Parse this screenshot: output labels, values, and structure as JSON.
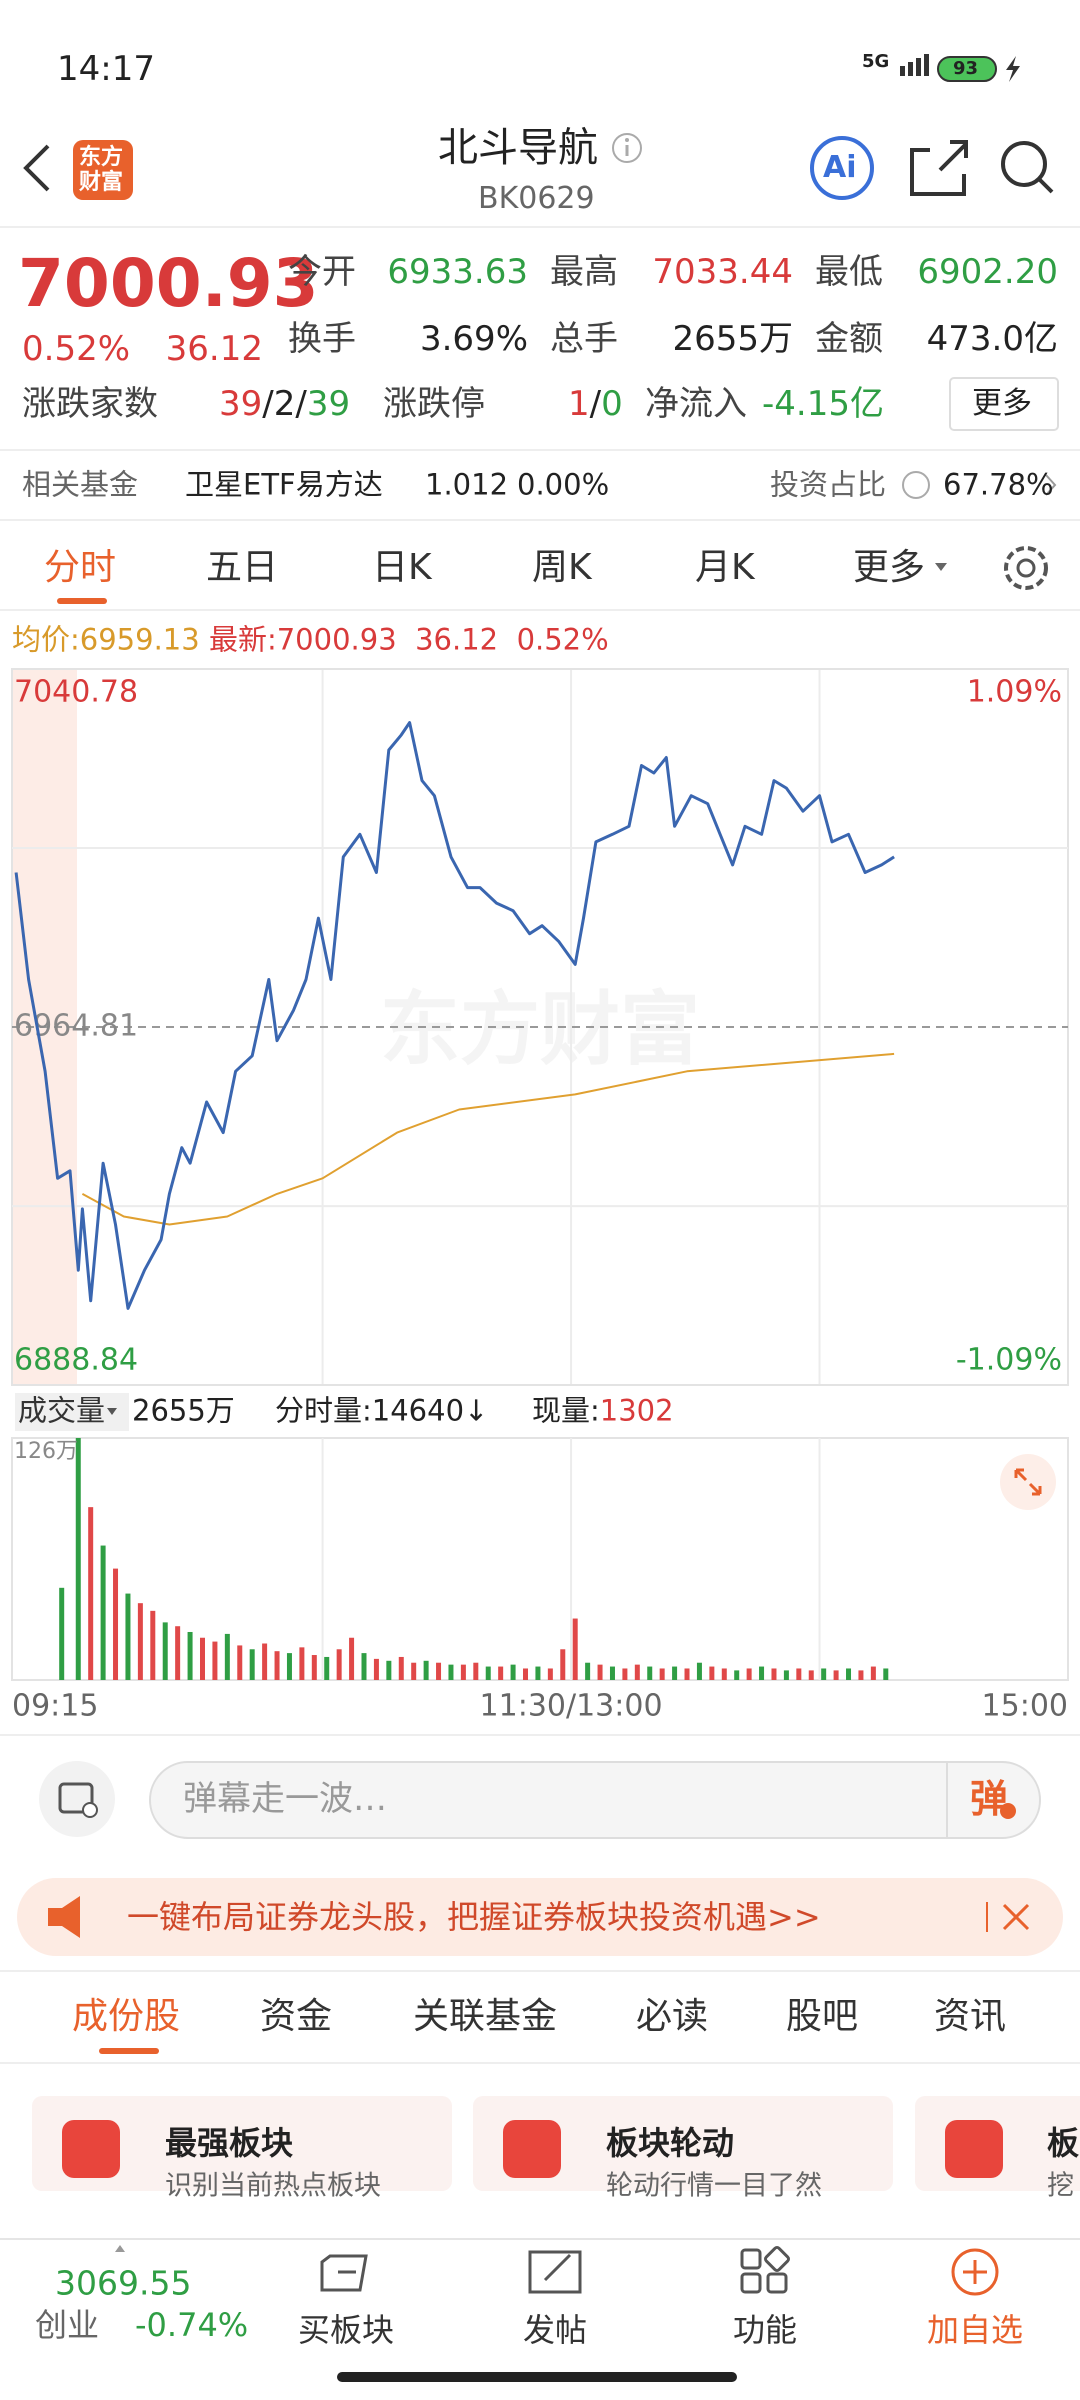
{
  "status_bar": {
    "time": "14:17",
    "network": "5G",
    "battery": "93"
  },
  "header": {
    "logo": [
      "东方",
      "财富"
    ],
    "title": "北斗导航",
    "code": "BK0629",
    "ai_button": "Ai"
  },
  "quote": {
    "price": "7000.93",
    "change_percent": "0.52%",
    "change": "36.12",
    "open": {
      "label": "今开",
      "value": "6933.63"
    },
    "high": {
      "label": "最高",
      "value": "7033.44"
    },
    "low": {
      "label": "最低",
      "value": "6902.20"
    },
    "turnover_rate": {
      "label": "换手",
      "value": "3.69%"
    },
    "volume": {
      "label": "总手",
      "value": "2655万"
    },
    "amount": {
      "label": "金额",
      "value": "473.0亿"
    },
    "advance_decline": {
      "label": "涨跌家数",
      "values": [
        "39",
        "2",
        "39"
      ],
      "separator": "/"
    },
    "limit": {
      "label": "涨跌停",
      "values": [
        "1",
        "0"
      ],
      "separator": "/"
    },
    "net_inflow": {
      "label": "净流入",
      "value": "-4.15亿"
    },
    "more_button": "更多"
  },
  "related_fund": {
    "label": "相关基金",
    "name": "卫星ETF易方达",
    "price": "1.012",
    "change": "0.00%",
    "ratio_label": "投资占比",
    "ratio": "67.78%"
  },
  "chart_tabs": [
    "分时",
    "五日",
    "日K",
    "周K",
    "月K",
    "更多"
  ],
  "info_line": {
    "avg_label": "均价:",
    "avg": "6959.13",
    "latest_label": "最新:",
    "latest": "7000.93",
    "change": "36.12",
    "change_percent": "0.52%"
  },
  "intraday_chart": {
    "type": "line",
    "watermark": "东方财富",
    "xlim": [
      0,
      255
    ],
    "xticks": [
      {
        "value": 0,
        "label": "09:15"
      },
      {
        "value": 135,
        "label": "11:30/13:00"
      },
      {
        "value": 255,
        "label": "15:00"
      }
    ],
    "xgrid": [
      75,
      135,
      195
    ],
    "ylim": [
      6888.84,
      7040.78
    ],
    "yticks": [
      6888.84,
      6964.81,
      7040.78
    ],
    "ygrid": [
      7002.8,
      6926.8
    ],
    "y2lim": [
      -1.09,
      1.09
    ],
    "y2ticks": [
      {
        "value": -1.09,
        "label": "-1.09%"
      },
      {
        "value": 1.09,
        "label": "1.09%"
      }
    ],
    "price": {
      "color": "#3a66b0",
      "x": [
        1,
        4,
        8,
        11,
        14,
        16,
        17,
        19,
        22,
        25,
        28,
        32,
        36,
        38,
        41,
        43,
        47,
        51,
        54,
        58,
        62,
        64,
        68,
        71,
        74,
        77,
        80,
        84,
        88,
        91,
        94,
        96,
        99,
        102,
        106,
        110,
        113,
        117,
        121,
        125,
        128,
        132,
        136,
        138,
        141,
        145,
        149,
        152,
        155,
        158,
        160,
        164,
        168,
        171,
        174,
        177,
        181,
        184,
        187,
        191,
        195,
        198,
        202,
        206,
        210,
        213
      ],
      "values": [
        6997.6,
        6974.9,
        6955.4,
        6932.7,
        6934.3,
        6913.2,
        6926.2,
        6906.7,
        6935.9,
        6922.9,
        6905.1,
        6913.2,
        6919.7,
        6929.4,
        6939.2,
        6935.9,
        6948.9,
        6942.4,
        6955.4,
        6958.7,
        6974.9,
        6961.9,
        6968.4,
        6974.9,
        6987.9,
        6974.9,
        7000.9,
        7005.7,
        6997.6,
        7023.6,
        7026.8,
        7029.4,
        7017.1,
        7013.9,
        7000.9,
        6994.4,
        6994.4,
        6991.1,
        6989.5,
        6984.6,
        6986.3,
        6983.0,
        6978.1,
        6987.9,
        7004.1,
        7005.7,
        7007.4,
        7020.3,
        7018.7,
        7022.0,
        7007.4,
        7013.9,
        7012.2,
        7005.7,
        6999.2,
        7007.4,
        7005.7,
        7017.1,
        7015.5,
        7010.6,
        7013.9,
        7004.1,
        7005.7,
        6997.6,
        6999.2,
        7000.9
      ]
    },
    "average": {
      "color": "#e0a030",
      "x": [
        17,
        27,
        38,
        52,
        64,
        75,
        93,
        108,
        136,
        163,
        213
      ],
      "values": [
        6929.4,
        6924.6,
        6922.9,
        6924.6,
        6929.4,
        6932.7,
        6942.4,
        6947.3,
        6950.5,
        6955.4,
        6959.1
      ]
    }
  },
  "volume_line": {
    "label": "成交量",
    "total": "2655万",
    "minute_label": "分时量:",
    "minute": "14640",
    "arrow": "↓",
    "current_label": "现量:",
    "current": "1302"
  },
  "volume_chart": {
    "type": "bar",
    "ylim": [
      0,
      126
    ],
    "yticks": [
      {
        "value": 126,
        "label": "126万"
      }
    ],
    "up_color": "#e04848",
    "down_color": "#2f9e44",
    "x": [
      12,
      16,
      19,
      22,
      25,
      28,
      31,
      34,
      37,
      40,
      43,
      46,
      49,
      52,
      55,
      58,
      61,
      64,
      67,
      70,
      73,
      76,
      79,
      82,
      85,
      88,
      91,
      94,
      97,
      100,
      103,
      106,
      109,
      112,
      115,
      118,
      121,
      124,
      127,
      130,
      133,
      136,
      139,
      142,
      145,
      148,
      151,
      154,
      157,
      160,
      163,
      166,
      169,
      172,
      175,
      178,
      181,
      184,
      187,
      190,
      193,
      196,
      199,
      202,
      205,
      208,
      211
    ],
    "values": [
      48,
      126,
      90,
      70,
      58,
      45,
      40,
      36,
      30,
      28,
      25,
      22,
      20,
      24,
      18,
      16,
      19,
      15,
      14,
      17,
      13,
      12,
      16,
      22,
      14,
      11,
      10,
      12,
      9,
      10,
      9,
      8,
      8,
      9,
      7,
      7,
      8,
      6,
      7,
      6,
      16,
      32,
      9,
      8,
      7,
      6,
      8,
      7,
      6,
      7,
      6,
      9,
      7,
      6,
      5,
      6,
      7,
      6,
      5,
      6,
      5,
      6,
      5,
      6,
      5,
      7,
      6
    ],
    "up": [
      0,
      0,
      1,
      0,
      1,
      0,
      1,
      1,
      0,
      1,
      0,
      1,
      1,
      0,
      1,
      0,
      1,
      1,
      0,
      1,
      1,
      0,
      1,
      1,
      0,
      1,
      0,
      1,
      1,
      0,
      1,
      0,
      1,
      1,
      0,
      1,
      0,
      1,
      0,
      1,
      1,
      1,
      0,
      1,
      0,
      1,
      1,
      0,
      1,
      0,
      1,
      0,
      1,
      1,
      0,
      1,
      0,
      1,
      0,
      1,
      1,
      0,
      1,
      0,
      1,
      1,
      0
    ]
  },
  "danmaku": {
    "placeholder": "弹幕走一波…",
    "button": "弹"
  },
  "banner": {
    "text": "一键布局证券龙头股，把握证券板块投资机遇>>"
  },
  "section_tabs": [
    "成份股",
    "资金",
    "关联基金",
    "必读",
    "股吧",
    "资讯"
  ],
  "cards": [
    {
      "title": "最强板块",
      "subtitle": "识别当前热点板块"
    },
    {
      "title": "板块轮动",
      "subtitle": "轮动行情一目了然"
    },
    {
      "title": "板",
      "subtitle": "挖"
    }
  ],
  "bottom_nav": {
    "index_value": "3069.55",
    "index_name": "创业",
    "index_change": "-0.74%",
    "items": [
      "买板块",
      "发帖",
      "功能",
      "加自选"
    ]
  }
}
